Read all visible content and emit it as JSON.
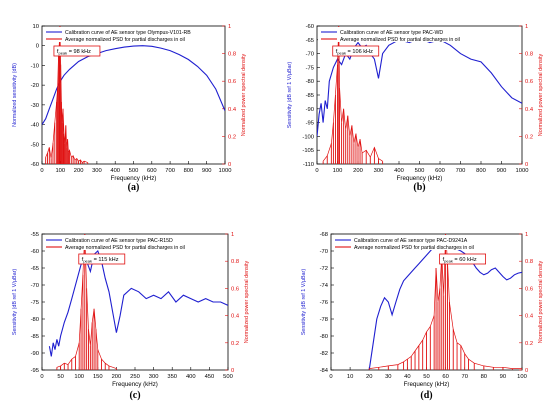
{
  "figure": {
    "captions": [
      "(a)",
      "(b)",
      "(c)",
      "(d)"
    ]
  },
  "colors": {
    "calibration": "#1f1fd0",
    "psd": "#e01010",
    "annotation_box": "#e01010"
  },
  "chart_data": [
    {
      "type": "line",
      "caption": "(a)",
      "xlabel": "Frequency (kHz)",
      "ylabel_left": "Normalized sensitivity (dB)",
      "ylabel_right": "Normalized power spectral density",
      "xlim": [
        0,
        1000
      ],
      "xticks": [
        0,
        100,
        200,
        300,
        400,
        500,
        600,
        700,
        800,
        900,
        1000
      ],
      "ylim_left": [
        -60,
        10
      ],
      "yticks_left": [
        -60,
        -50,
        -40,
        -30,
        -20,
        -10,
        0,
        10
      ],
      "ylim_right": [
        0,
        1
      ],
      "yticks_right": [
        0,
        0.2,
        0.4,
        0.6,
        0.8,
        1
      ],
      "ytick_labels_right": [
        "0",
        "0.2",
        "0.4",
        "0.6",
        "0.8",
        "1"
      ],
      "legend": {
        "position": "top",
        "entries": [
          "Calibration curve of AE sensor type Olympus-V101-RB",
          "Average normalized PSD for partial discharges in oil"
        ]
      },
      "annotation": {
        "label": "f",
        "sub": "peak",
        "value": " = 98 kHz",
        "at_x": 98
      },
      "series": [
        {
          "name": "Calibration curve of AE sensor type Olympus-V101-RB",
          "axis": "left",
          "x": [
            0,
            20,
            40,
            60,
            80,
            100,
            120,
            150,
            200,
            250,
            300,
            350,
            400,
            450,
            500,
            550,
            600,
            650,
            700,
            750,
            800,
            850,
            900,
            950,
            1000
          ],
          "y": [
            -40,
            -37,
            -32,
            -27,
            -22,
            -18,
            -15,
            -12,
            -8,
            -5.5,
            -4,
            -2.5,
            -1.5,
            -0.7,
            -0.2,
            0,
            -0.3,
            -1.2,
            -2.5,
            -4.5,
            -7,
            -10.5,
            -15,
            -22,
            -33
          ]
        },
        {
          "name": "Average normalized PSD for partial discharges in oil",
          "axis": "right",
          "x": [
            20,
            30,
            40,
            50,
            60,
            70,
            80,
            85,
            90,
            95,
            98,
            102,
            106,
            110,
            115,
            120,
            125,
            130,
            135,
            140,
            145,
            150,
            160,
            170,
            180,
            190,
            200,
            210,
            220,
            230,
            250
          ],
          "y": [
            0.05,
            0.08,
            0.12,
            0.04,
            0.15,
            0.3,
            0.45,
            0.55,
            0.78,
            0.88,
            1.0,
            0.72,
            0.45,
            0.3,
            0.4,
            0.22,
            0.15,
            0.28,
            0.12,
            0.18,
            0.08,
            0.1,
            0.05,
            0.06,
            0.03,
            0.04,
            0.02,
            0.03,
            0.01,
            0.02,
            0.01
          ]
        }
      ]
    },
    {
      "type": "line",
      "caption": "(b)",
      "xlabel": "Frequency (kHz)",
      "ylabel_left": "Sensitivity (dB ref 1 V/μBar)",
      "ylabel_right": "Normalized power spectral density",
      "xlim": [
        0,
        1000
      ],
      "xticks": [
        0,
        100,
        200,
        300,
        400,
        500,
        600,
        700,
        800,
        900,
        1000
      ],
      "ylim_left": [
        -110,
        -60
      ],
      "yticks_left": [
        -110,
        -105,
        -100,
        -95,
        -90,
        -85,
        -80,
        -75,
        -70,
        -65,
        -60
      ],
      "ylim_right": [
        0,
        1
      ],
      "yticks_right": [
        0,
        0.2,
        0.4,
        0.6,
        0.8,
        1
      ],
      "ytick_labels_right": [
        "0",
        "0.2",
        "0.4",
        "0.6",
        "0.8",
        "1"
      ],
      "legend": {
        "position": "top",
        "entries": [
          "Calibration curve of AE sensor type PAC-WD",
          "Average normalized PSD for partial discharges in oil"
        ]
      },
      "annotation": {
        "label": "f",
        "sub": "peak",
        "value": " = 106 kHz",
        "at_x": 106
      },
      "series": [
        {
          "name": "Calibration curve of AE sensor type PAC-WD",
          "axis": "left",
          "x": [
            0,
            10,
            20,
            30,
            40,
            50,
            60,
            80,
            100,
            120,
            140,
            160,
            180,
            200,
            220,
            240,
            260,
            280,
            300,
            320,
            350,
            400,
            450,
            500,
            550,
            600,
            650,
            700,
            750,
            800,
            850,
            900,
            950,
            1000
          ],
          "y": [
            -100,
            -92,
            -88,
            -95,
            -87,
            -90,
            -80,
            -75,
            -72,
            -74,
            -70,
            -72,
            -68,
            -66,
            -68,
            -67,
            -70,
            -72,
            -79,
            -70,
            -67,
            -65,
            -66,
            -64.5,
            -66,
            -65,
            -67,
            -70,
            -72,
            -73,
            -77,
            -82,
            -86,
            -88
          ]
        },
        {
          "name": "Average normalized PSD for partial discharges in oil",
          "axis": "right",
          "x": [
            30,
            50,
            70,
            80,
            90,
            100,
            106,
            110,
            120,
            130,
            140,
            150,
            160,
            170,
            180,
            190,
            200,
            210,
            220,
            240,
            260,
            280,
            300,
            320
          ],
          "y": [
            0.02,
            0.06,
            0.15,
            0.3,
            0.5,
            0.72,
            1.0,
            0.55,
            0.3,
            0.4,
            0.25,
            0.35,
            0.2,
            0.28,
            0.15,
            0.22,
            0.12,
            0.18,
            0.08,
            0.1,
            0.05,
            0.12,
            0.04,
            0.02
          ]
        }
      ]
    },
    {
      "type": "line",
      "caption": "(c)",
      "xlabel": "Frequency (kHz)",
      "ylabel_left": "Sensitivity (dB ref 1 V/μBar)",
      "ylabel_right": "Normalized power spectral density",
      "xlim": [
        0,
        500
      ],
      "xticks": [
        0,
        50,
        100,
        150,
        200,
        250,
        300,
        350,
        400,
        450,
        500
      ],
      "ylim_left": [
        -95,
        -55
      ],
      "yticks_left": [
        -95,
        -90,
        -85,
        -80,
        -75,
        -70,
        -65,
        -60,
        -55
      ],
      "ylim_right": [
        0,
        1
      ],
      "yticks_right": [
        0,
        0.2,
        0.4,
        0.6,
        0.8,
        1
      ],
      "ytick_labels_right": [
        "0",
        "0.2",
        "0.4",
        "0.6",
        "0.8",
        "1"
      ],
      "legend": {
        "position": "top",
        "entries": [
          "Calibration curve of AE sensor type PAC-R15D",
          "Average normalized PSD for partial discharges in oil"
        ]
      },
      "annotation": {
        "label": "f",
        "sub": "peak",
        "value": " = 115 kHz",
        "at_x": 115
      },
      "series": [
        {
          "name": "Calibration curve of AE sensor type PAC-R15D",
          "axis": "left",
          "x": [
            20,
            25,
            30,
            35,
            40,
            45,
            50,
            60,
            70,
            80,
            90,
            100,
            110,
            115,
            120,
            130,
            140,
            150,
            160,
            170,
            180,
            190,
            200,
            210,
            220,
            240,
            260,
            280,
            300,
            320,
            340,
            360,
            380,
            400,
            420,
            440,
            460,
            480,
            500
          ],
          "y": [
            -88,
            -91,
            -87,
            -89,
            -86,
            -88,
            -85,
            -81,
            -78,
            -74,
            -70,
            -66,
            -62,
            -61,
            -63,
            -66,
            -61,
            -60,
            -63,
            -68,
            -72,
            -78,
            -84,
            -79,
            -73,
            -71,
            -72,
            -74,
            -73,
            -74,
            -72,
            -75,
            -73,
            -74,
            -75,
            -74,
            -75,
            -75,
            -76
          ]
        },
        {
          "name": "Average normalized PSD for partial discharges in oil",
          "axis": "right",
          "x": [
            40,
            50,
            60,
            70,
            80,
            90,
            100,
            105,
            110,
            115,
            120,
            125,
            130,
            135,
            140,
            145,
            150,
            160,
            170,
            180,
            200
          ],
          "y": [
            0.02,
            0.03,
            0.05,
            0.04,
            0.08,
            0.1,
            0.2,
            0.45,
            0.7,
            1.0,
            0.6,
            0.3,
            0.18,
            0.35,
            0.45,
            0.3,
            0.15,
            0.08,
            0.05,
            0.03,
            0.01
          ]
        }
      ]
    },
    {
      "type": "line",
      "caption": "(d)",
      "xlabel": "Frequency (kHz)",
      "ylabel_left": "Sensitivity (dB ref 1 V/μBar)",
      "ylabel_right": "Normalized power spectral density",
      "xlim": [
        0,
        100
      ],
      "xticks": [
        0,
        10,
        20,
        30,
        40,
        50,
        60,
        70,
        80,
        90,
        100
      ],
      "ylim_left": [
        -84,
        -68
      ],
      "yticks_left": [
        -84,
        -82,
        -80,
        -78,
        -76,
        -74,
        -72,
        -70,
        -68
      ],
      "ylim_right": [
        0,
        1
      ],
      "yticks_right": [
        0,
        0.2,
        0.4,
        0.6,
        0.8,
        1
      ],
      "ytick_labels_right": [
        "0",
        "0.2",
        "0.4",
        "0.6",
        "0.8",
        "1"
      ],
      "legend": {
        "position": "top",
        "entries": [
          "Calibration curve of AE sensor type PAC-D9241A",
          "Average normalized PSD for partial discharges in oil"
        ]
      },
      "annotation": {
        "label": "f",
        "sub": "peak",
        "value": " = 60 kHz",
        "at_x": 60
      },
      "series": [
        {
          "name": "Calibration curve of AE sensor type PAC-D9241A",
          "axis": "left",
          "x": [
            20,
            22,
            24,
            26,
            28,
            30,
            32,
            34,
            36,
            38,
            40,
            42,
            44,
            46,
            48,
            50,
            52,
            54,
            56,
            58,
            60,
            62,
            64,
            66,
            68,
            70,
            72,
            74,
            76,
            78,
            80,
            82,
            84,
            86,
            88,
            90,
            92,
            94,
            96,
            98,
            100
          ],
          "y": [
            -84,
            -81,
            -78,
            -76.5,
            -75.5,
            -76,
            -77.5,
            -76,
            -74.5,
            -73.5,
            -73,
            -72.5,
            -72,
            -71.5,
            -71,
            -70.5,
            -70,
            -69.5,
            -69.5,
            -69.5,
            -69,
            -69.2,
            -69.5,
            -69.8,
            -70,
            -70.3,
            -70.8,
            -71.3,
            -72,
            -72.5,
            -72.8,
            -72.6,
            -72.2,
            -72,
            -72.5,
            -73,
            -73.4,
            -73.2,
            -72.8,
            -72.6,
            -72.5
          ]
        },
        {
          "name": "Average normalized PSD for partial discharges in oil",
          "axis": "right",
          "x": [
            20,
            25,
            30,
            35,
            38,
            40,
            42,
            44,
            46,
            48,
            50,
            52,
            54,
            55,
            56,
            57,
            58,
            59,
            60,
            61,
            62,
            64,
            66,
            68,
            70,
            72,
            75,
            80,
            85,
            90,
            95,
            100
          ],
          "y": [
            0.01,
            0.02,
            0.03,
            0.04,
            0.06,
            0.08,
            0.1,
            0.14,
            0.18,
            0.22,
            0.28,
            0.32,
            0.4,
            0.75,
            0.5,
            0.6,
            0.85,
            0.55,
            1.0,
            0.8,
            0.5,
            0.3,
            0.2,
            0.18,
            0.12,
            0.08,
            0.05,
            0.03,
            0.02,
            0.02,
            0.01,
            0.01
          ]
        }
      ]
    }
  ]
}
